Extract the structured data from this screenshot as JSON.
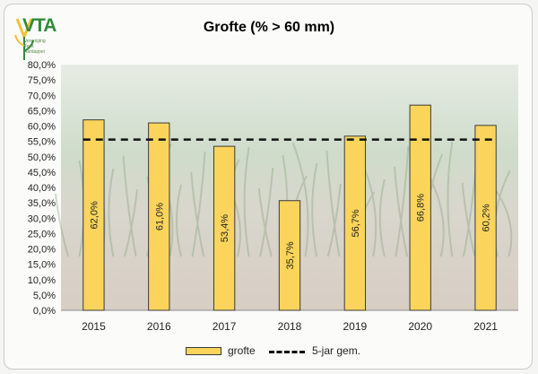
{
  "logo": {
    "brand": "VTA",
    "tagline": [
      "Vereniging",
      "Teelt",
      "Aardappel"
    ],
    "colors": {
      "green": "#2f8c3a",
      "yellow": "#f1c232"
    }
  },
  "chart_data": {
    "type": "bar",
    "title": "Grofte (% > 60 mm)",
    "xlabel": "",
    "ylabel": "",
    "categories": [
      "2015",
      "2016",
      "2017",
      "2018",
      "2019",
      "2020",
      "2021"
    ],
    "series": [
      {
        "name": "grofte",
        "values": [
          62.0,
          61.0,
          53.4,
          35.7,
          56.7,
          66.8,
          60.2
        ],
        "labels": [
          "62,0%",
          "61,0%",
          "53,4%",
          "35,7%",
          "56,7%",
          "66,8%",
          "60,2%"
        ],
        "color": "#fbd55b"
      },
      {
        "name": "5-jar gem.",
        "type": "line",
        "style": "dashed",
        "values": [
          55.6,
          55.6,
          55.6,
          55.6,
          55.6,
          55.6,
          55.6
        ],
        "color": "#111111"
      }
    ],
    "ylim": [
      0,
      80
    ],
    "ytick_step": 5,
    "ytick_labels": [
      "0,0%",
      "5,0%",
      "10,0%",
      "15,0%",
      "20,0%",
      "25,0%",
      "30,0%",
      "35,0%",
      "40,0%",
      "45,0%",
      "50,0%",
      "55,0%",
      "60,0%",
      "65,0%",
      "70,0%",
      "75,0%",
      "80,0%"
    ],
    "grid": false,
    "legend_position": "bottom",
    "background": "photo of onion field"
  }
}
